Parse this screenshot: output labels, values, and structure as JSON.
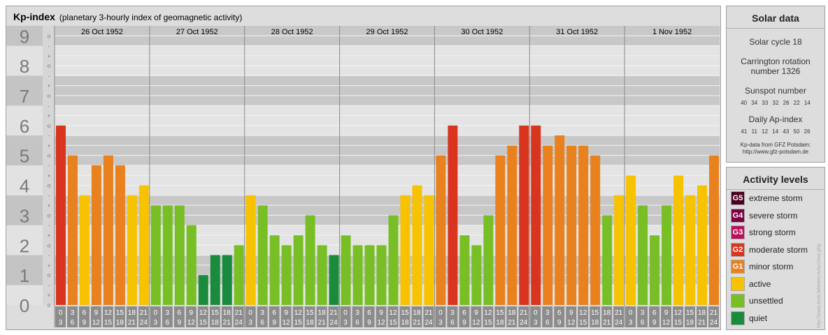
{
  "header": {
    "title": "Kp-index",
    "subtitle": "(planetary 3-hourly index of geomagnetic activity)"
  },
  "chart_data": {
    "type": "bar",
    "title": "Kp-index",
    "subtitle": "(planetary 3-hourly index of geomagnetic activity)",
    "ylim": [
      0,
      9
    ],
    "y_ticks": [
      "0",
      "1",
      "2",
      "3",
      "4",
      "5",
      "6",
      "7",
      "8",
      "9"
    ],
    "minor_tick_marks": [
      "-",
      "o",
      "+"
    ],
    "days": [
      "26 Oct 1952",
      "27 Oct 1952",
      "28 Oct 1952",
      "29 Oct 1952",
      "30 Oct 1952",
      "31 Oct 1952",
      "1 Nov 1952"
    ],
    "interval_starts": [
      "0",
      "3",
      "6",
      "9",
      "12",
      "15",
      "18",
      "21"
    ],
    "interval_ends": [
      "3",
      "6",
      "9",
      "12",
      "15",
      "18",
      "21",
      "24"
    ],
    "values": [
      [
        6.0,
        5.0,
        3.67,
        4.67,
        5.0,
        4.67,
        3.67,
        4.0
      ],
      [
        3.33,
        3.33,
        3.33,
        2.67,
        1.0,
        1.67,
        1.67,
        2.0
      ],
      [
        3.67,
        3.33,
        2.33,
        2.0,
        2.33,
        3.0,
        2.0,
        1.67
      ],
      [
        2.33,
        2.0,
        2.0,
        2.0,
        3.0,
        3.67,
        4.0,
        3.67
      ],
      [
        5.0,
        6.0,
        2.33,
        2.0,
        3.0,
        5.0,
        5.33,
        6.0
      ],
      [
        6.0,
        5.33,
        5.67,
        5.33,
        5.33,
        5.0,
        3.0,
        3.67
      ],
      [
        4.33,
        3.33,
        2.33,
        3.33,
        4.33,
        3.67,
        4.0,
        5.0
      ]
    ],
    "colors": {
      "quiet": "#1a8a3c",
      "unsettled": "#78bf26",
      "active": "#f7c200",
      "minor_storm": "#e8811e",
      "moderate_storm": "#d8341e",
      "band_dark": "#c8c8c8",
      "band_light": "#e4e4e4",
      "grid": "#f4f4f4",
      "axis_label": "#7a7a7a"
    },
    "grid": true
  },
  "solar": {
    "heading": "Solar data",
    "cycle": "Solar cycle 18",
    "carrington_line1": "Carrington rotation",
    "carrington_line2": "number 1326",
    "sunspot_label": "Sunspot number",
    "sunspot_values": "40 34 33 32 26 22 14",
    "ap_label": "Daily Ap-index",
    "ap_values": "41 11 12 14 43 50 26",
    "credit_line1": "Kp-data from GFZ Potsdam:",
    "credit_line2": "http://www.gfz-potsdam.de"
  },
  "activity": {
    "heading": "Activity levels",
    "levels": [
      {
        "badge": "G5",
        "label": "extreme storm",
        "color": "#4a0020"
      },
      {
        "badge": "G4",
        "label": "severe storm",
        "color": "#7a0040"
      },
      {
        "badge": "G3",
        "label": "strong storm",
        "color": "#b8105a"
      },
      {
        "badge": "G2",
        "label": "moderate storm",
        "color": "#d8341e"
      },
      {
        "badge": "G1",
        "label": "minor storm",
        "color": "#e8811e"
      },
      {
        "badge": "",
        "label": "active",
        "color": "#f7c200"
      },
      {
        "badge": "",
        "label": "unsettled",
        "color": "#78bf26"
      },
      {
        "badge": "",
        "label": "quiet",
        "color": "#1a8a3c"
      }
    ]
  },
  "watermark": "http://www.tesis.lebedev.ru/archive.php"
}
